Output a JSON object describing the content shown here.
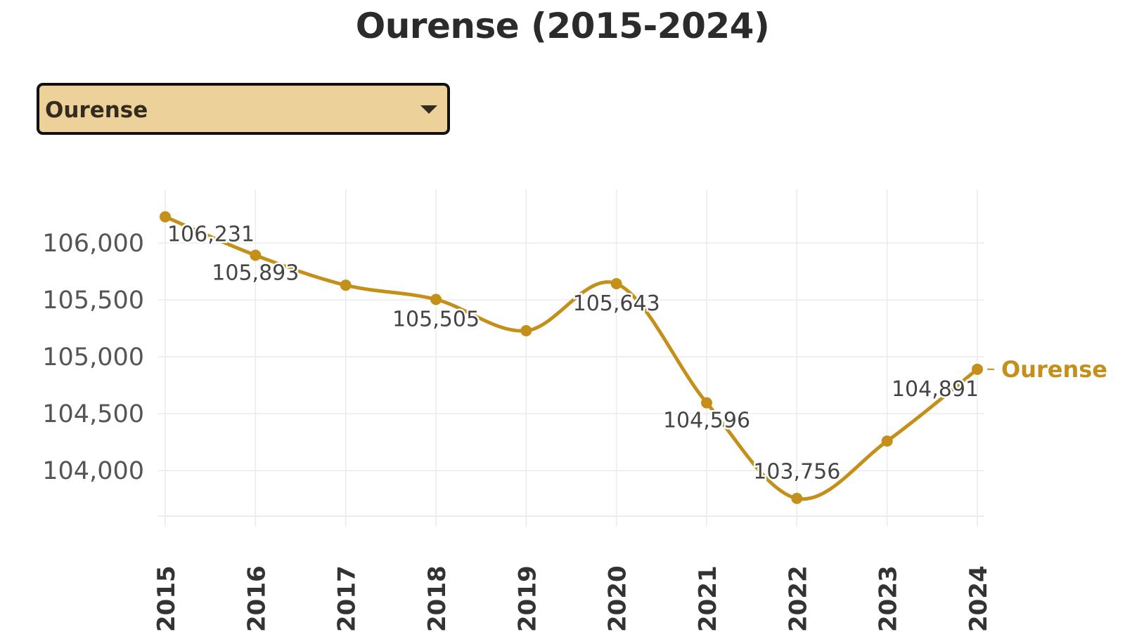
{
  "title": "Ourense (2015-2024)",
  "dropdown": {
    "selected": "Ourense"
  },
  "chart_data": {
    "type": "line",
    "title": "Ourense (2015-2024)",
    "x": [
      "2015",
      "2016",
      "2017",
      "2018",
      "2019",
      "2020",
      "2021",
      "2022",
      "2023",
      "2024"
    ],
    "series": [
      {
        "name": "Ourense",
        "values": [
          106231,
          105893,
          105630,
          105505,
          105230,
          105643,
          104596,
          103756,
          104260,
          104891
        ],
        "data_labels": [
          "106,231",
          "105,893",
          "",
          "105,505",
          "",
          "105,643",
          "104,596",
          "103,756",
          "",
          "104,891"
        ]
      }
    ],
    "yticks": [
      "106,000",
      "105,500",
      "105,000",
      "104,500",
      "104,000"
    ],
    "ytick_values": [
      106000,
      105500,
      105000,
      104500,
      104000
    ],
    "ylim": [
      103600,
      106470
    ],
    "grid": true,
    "line_color": "#c4901a",
    "legend": "end-of-line label"
  }
}
